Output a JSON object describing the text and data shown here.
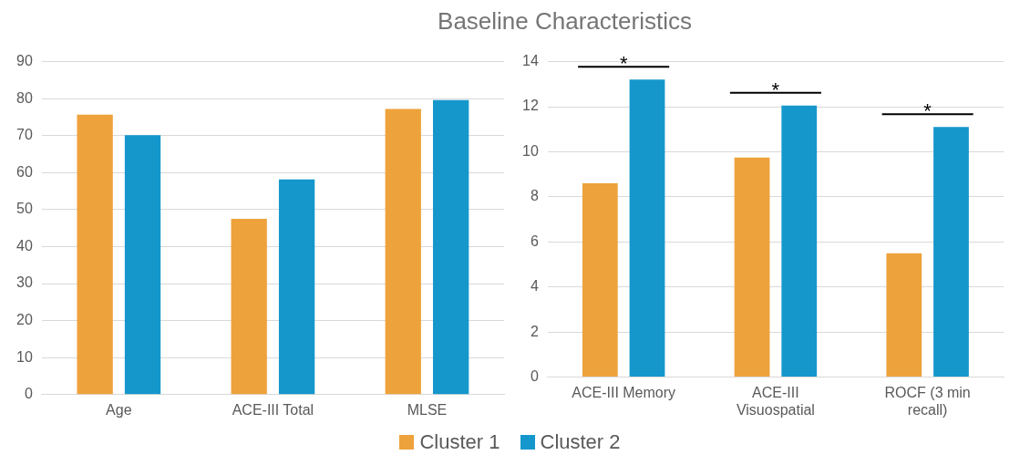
{
  "chart_data": [
    {
      "type": "bar",
      "title": "Baseline Characteristics",
      "categories": [
        "Age",
        "ACE-III Total",
        "MLSE"
      ],
      "series": [
        {
          "name": "Cluster 1",
          "color": "#eea23c",
          "values": [
            75.7,
            47.5,
            77.2
          ]
        },
        {
          "name": "Cluster 2",
          "color": "#1597cc",
          "values": [
            70.1,
            58.2,
            79.6
          ]
        }
      ],
      "ylim": [
        0,
        90
      ],
      "yticks": [
        0,
        10,
        20,
        30,
        40,
        50,
        60,
        70,
        80,
        90
      ],
      "grid": "y",
      "legend": "bottom"
    },
    {
      "type": "bar",
      "categories": [
        "ACE-III Memory",
        "ACE-III Visuospatial",
        "ROCF (3 min recall)"
      ],
      "series": [
        {
          "color": "#eea23c",
          "values": [
            8.6,
            9.75,
            5.5
          ]
        },
        {
          "color": "#1597cc",
          "values": [
            13.2,
            12.05,
            11.1
          ]
        }
      ],
      "ylim": [
        0,
        14
      ],
      "yticks": [
        0,
        2,
        4,
        6,
        8,
        10,
        12,
        14
      ],
      "grid": "y",
      "annotations": [
        "*",
        "*",
        "*"
      ]
    }
  ]
}
